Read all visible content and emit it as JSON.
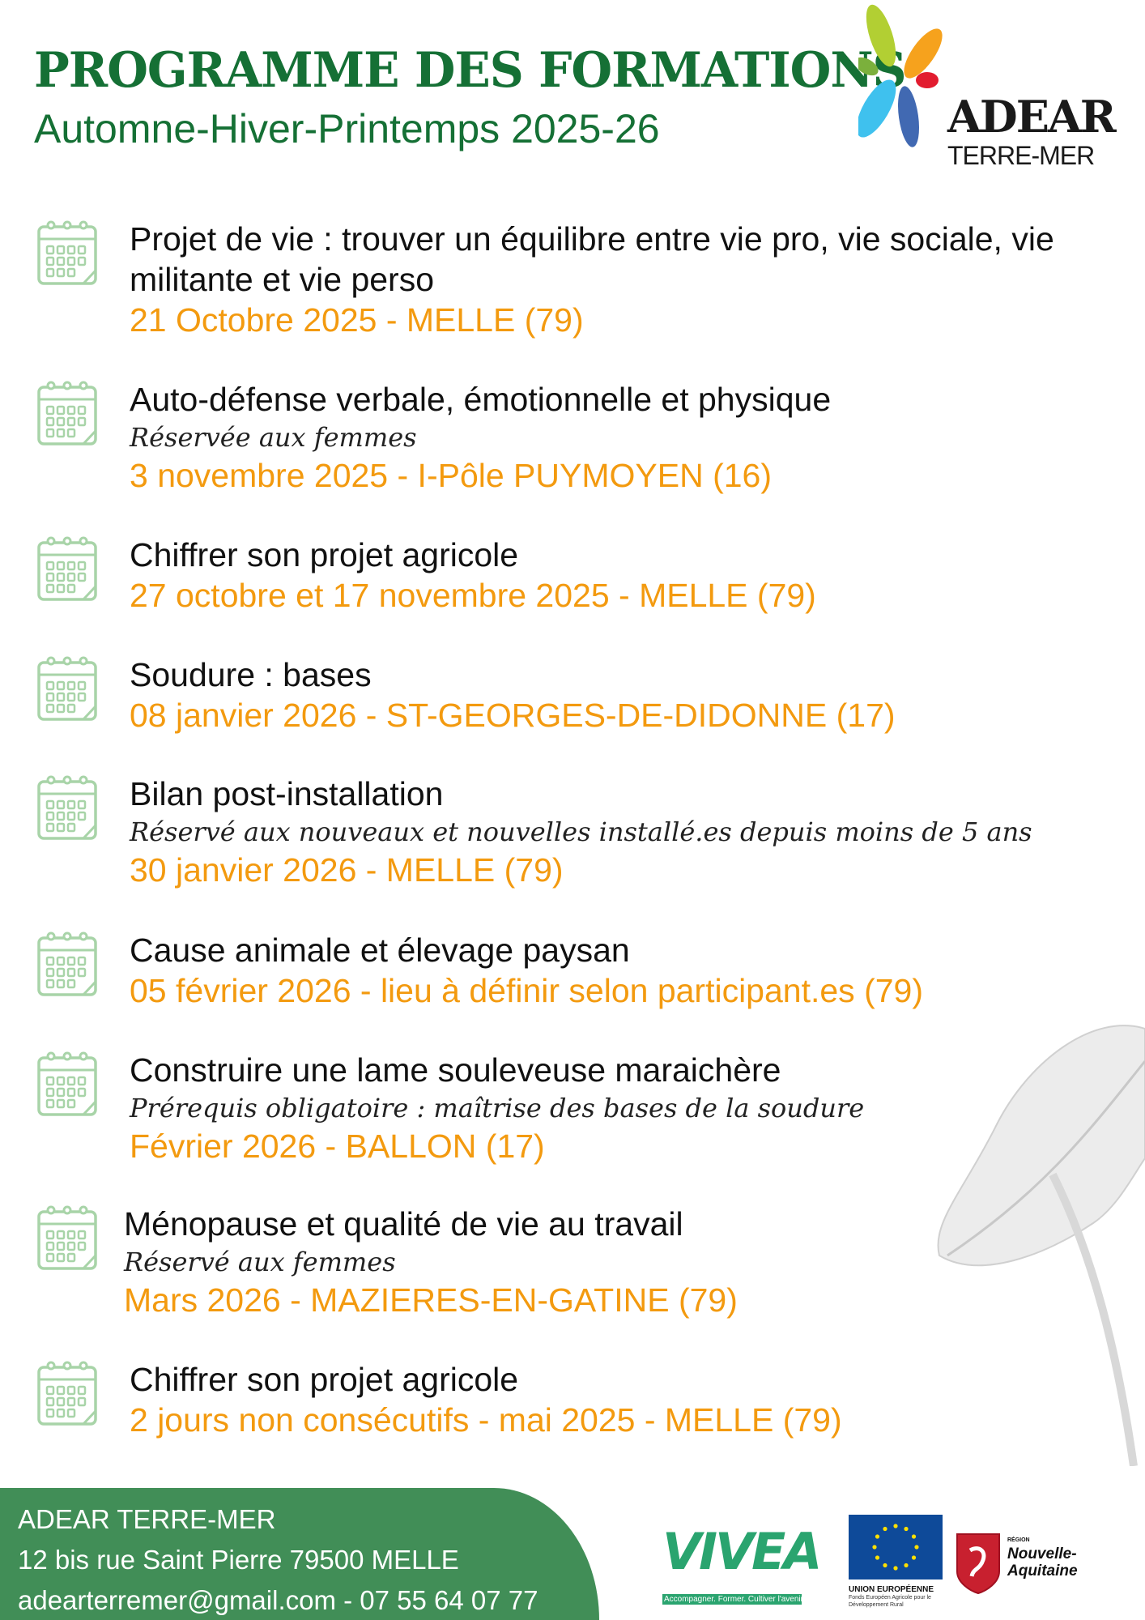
{
  "header": {
    "title": "PROGRAMME DES FORMATIONS",
    "subtitle": "Automne-Hiver-Printemps 2025-26",
    "logo": {
      "name": "ADEAR",
      "sub": "TERRE-MER"
    }
  },
  "colors": {
    "brand_green": "#157035",
    "date_orange": "#f39a0f",
    "footer_green": "#418e57",
    "icon_green": "#a8d4a8"
  },
  "items": [
    {
      "title": "Projet de vie : trouver un équilibre entre vie pro, vie sociale, vie militante et vie perso",
      "note": "",
      "date": "21 Octobre 2025 - MELLE (79)",
      "icon": "calendar-icon"
    },
    {
      "title": "Auto-défense verbale, émotionnelle et physique",
      "note": "Réservée aux femmes",
      "date": "3 novembre 2025 - I-Pôle PUYMOYEN (16)",
      "icon": "calendar-icon"
    },
    {
      "title": "Chiffrer son projet agricole",
      "note": "",
      "date": "27 octobre et 17 novembre 2025  - MELLE (79)",
      "icon": "calendar-icon"
    },
    {
      "title": "Soudure : bases",
      "note": "",
      "date": "08 janvier 2026 - ST-GEORGES-DE-DIDONNE (17)",
      "icon": "calendar-icon"
    },
    {
      "title": "Bilan post-installation",
      "note": "Réservé aux nouveaux et nouvelles installé.es depuis moins de 5 ans",
      "date": "30 janvier 2026 - MELLE (79)",
      "icon": "calendar-icon"
    },
    {
      "title": "Cause animale et élevage paysan",
      "note": "",
      "date": "05 février 2026 - lieu à définir selon participant.es (79)",
      "icon": "calendar-icon"
    },
    {
      "title": "Construire une lame souleveuse maraichère",
      "note": "Prérequis obligatoire : maîtrise des bases de la soudure",
      "date": "Février 2026 - BALLON (17)",
      "icon": "calendar-icon"
    },
    {
      "title": "Ménopause et qualité de vie au travail",
      "note": "Réservé aux femmes",
      "date": "Mars 2026 - MAZIERES-EN-GATINE (79)",
      "icon": "calendar-icon"
    },
    {
      "title": "Chiffrer son projet agricole",
      "note": "",
      "date": "2 jours non consécutifs - mai 2025  - MELLE (79)",
      "icon": "calendar-icon"
    }
  ],
  "footer": {
    "org": "ADEAR TERRE-MER",
    "address": "12 bis rue Saint Pierre 79500 MELLE",
    "contact": "adearterremer@gmail.com - 07 55 64 07 77",
    "partners": {
      "vivea": {
        "name": "VIVEA",
        "tagline": "Accompagner. Former. Cultiver l'avenir"
      },
      "eu": {
        "name": "UNION EUROPÉENNE",
        "sub": "Fonds Européen Agricole pour le Développement Rural"
      },
      "region": {
        "small": "RÉGION",
        "name": "Nouvelle-Aquitaine"
      }
    }
  }
}
